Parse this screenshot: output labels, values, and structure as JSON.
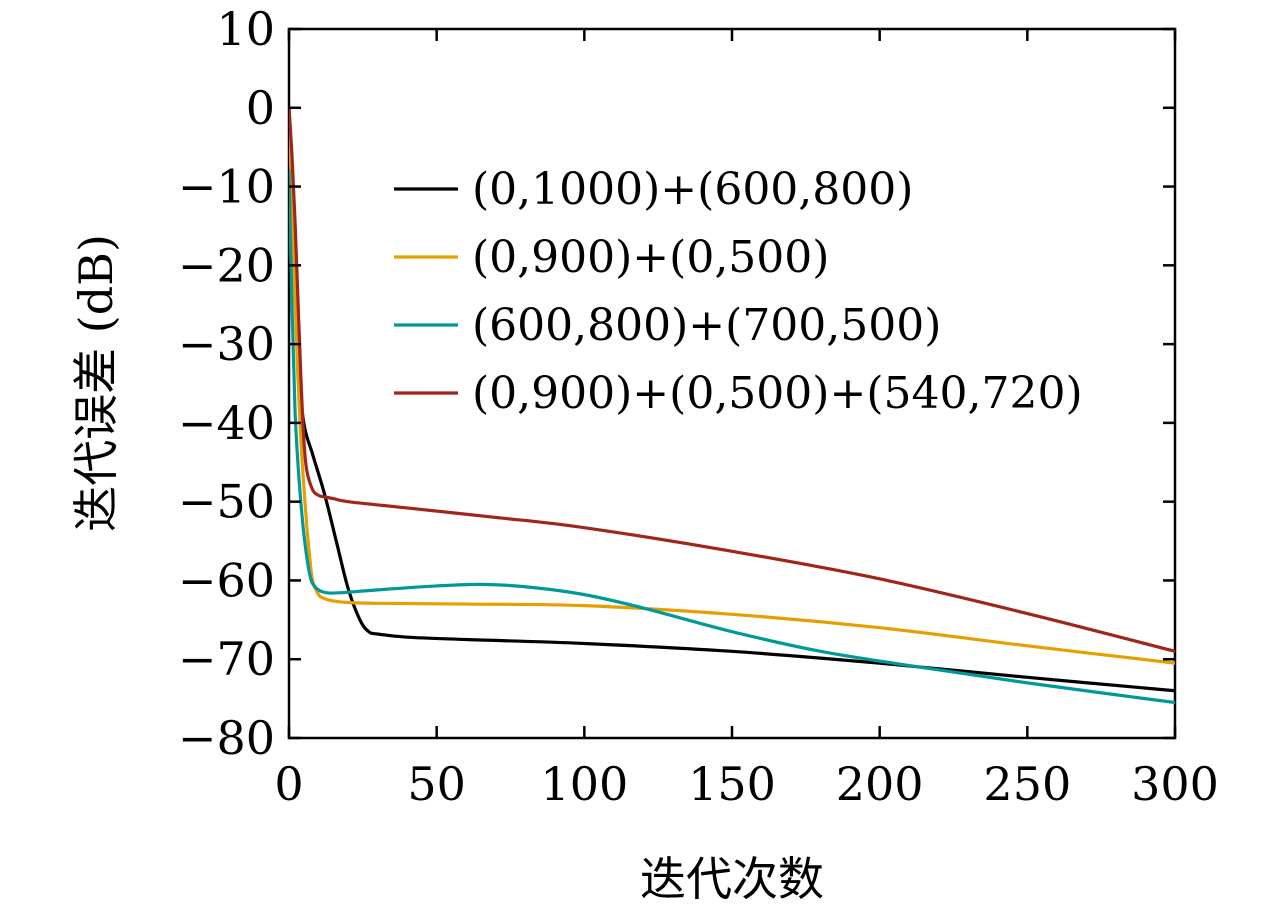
{
  "chart_data": {
    "type": "line",
    "xlabel": "迭代次数",
    "ylabel": "迭代误差 (dB)",
    "xlim": [
      0,
      300
    ],
    "ylim": [
      -80,
      10
    ],
    "xticks": [
      0,
      50,
      100,
      150,
      200,
      250,
      300
    ],
    "yticks": [
      10,
      0,
      -10,
      -20,
      -30,
      -40,
      -50,
      -60,
      -70,
      -80
    ],
    "xtick_labels": [
      "0",
      "50",
      "100",
      "150",
      "200",
      "250",
      "300"
    ],
    "ytick_labels": [
      "10",
      "0",
      "−10",
      "−20",
      "−30",
      "−40",
      "−50",
      "−60",
      "−70",
      "−80"
    ],
    "grid": false,
    "legend_position": "upper-right",
    "series": [
      {
        "name": "(0,1000)+(600,800)",
        "color": "#000000",
        "x": [
          0,
          1,
          2,
          3,
          5,
          8,
          12,
          16,
          20,
          24,
          27,
          30,
          40,
          60,
          100,
          150,
          200,
          250,
          300
        ],
        "y": [
          0,
          -8,
          -20,
          -32,
          -40,
          -44,
          -49,
          -55,
          -61,
          -65,
          -66.5,
          -66.8,
          -67.2,
          -67.5,
          -68.0,
          -69.0,
          -70.5,
          -72.3,
          -74.0
        ]
      },
      {
        "name": "(0,900)+(0,500)",
        "color": "#E69F00",
        "x": [
          0,
          1,
          2,
          3,
          4,
          5,
          6,
          7,
          8,
          10,
          12,
          15,
          20,
          30,
          60,
          100,
          150,
          200,
          250,
          300
        ],
        "y": [
          -1,
          -12,
          -24,
          -34,
          -42,
          -48,
          -53,
          -57,
          -60,
          -61.8,
          -62.3,
          -62.6,
          -62.8,
          -62.9,
          -63.0,
          -63.2,
          -64.3,
          -66.0,
          -68.3,
          -70.5
        ]
      },
      {
        "name": "(600,800)+(700,500)",
        "color": "#009999",
        "x": [
          0,
          1,
          2,
          3,
          4,
          5,
          6,
          7,
          8,
          10,
          12,
          15,
          20,
          30,
          50,
          65,
          80,
          100,
          120,
          150,
          180,
          210,
          250,
          300
        ],
        "y": [
          -8,
          -25,
          -38,
          -45,
          -50,
          -54,
          -57,
          -59.2,
          -60.4,
          -61.2,
          -61.5,
          -61.6,
          -61.5,
          -61.2,
          -60.7,
          -60.5,
          -60.8,
          -61.8,
          -63.5,
          -66.5,
          -69.0,
          -70.8,
          -73.0,
          -75.5
        ]
      },
      {
        "name": "(0,900)+(0,500)+(540,720)",
        "color": "#A0261B",
        "x": [
          0,
          1,
          2,
          3,
          4,
          5,
          6,
          8,
          10,
          12,
          15,
          20,
          40,
          70,
          100,
          150,
          200,
          250,
          300
        ],
        "y": [
          0,
          -6,
          -14,
          -24,
          -34,
          -42,
          -46,
          -48.5,
          -49.2,
          -49.4,
          -49.6,
          -50.0,
          -50.8,
          -52.0,
          -53.3,
          -56.3,
          -59.8,
          -64.2,
          -69.0
        ]
      }
    ]
  }
}
